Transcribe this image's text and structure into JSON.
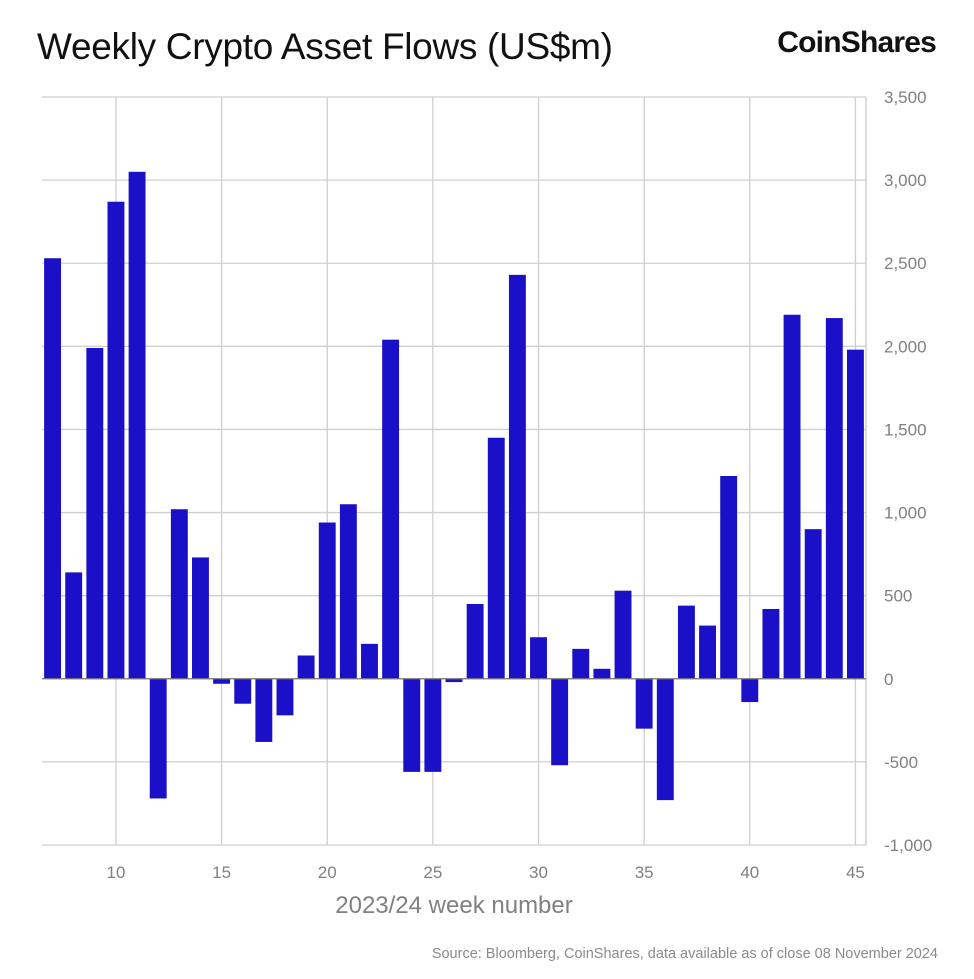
{
  "title": "Weekly Crypto Asset Flows (US$m)",
  "brand": "CoinShares",
  "footer": {
    "source": "Source: Bloomberg, CoinShares, data available as of close 08 November 2024"
  },
  "colors": {
    "bar": "#1a10c8",
    "grid": "#cfcfcf",
    "zero_line": "#7a7a7a",
    "text": "#808080"
  },
  "chart_data": {
    "type": "bar",
    "title": "Weekly Crypto Asset Flows (US$m)",
    "xlabel": "2023/24 week number",
    "ylabel": "",
    "x": [
      7,
      8,
      9,
      10,
      11,
      12,
      13,
      14,
      15,
      16,
      17,
      18,
      19,
      20,
      21,
      22,
      23,
      24,
      25,
      26,
      27,
      28,
      29,
      30,
      31,
      32,
      33,
      34,
      35,
      36,
      37,
      38,
      39,
      40,
      41,
      42,
      43,
      44,
      45
    ],
    "values": [
      2530,
      640,
      1990,
      2870,
      3050,
      -720,
      1020,
      730,
      -30,
      -150,
      -380,
      -220,
      140,
      940,
      1050,
      210,
      2040,
      -560,
      -560,
      -20,
      450,
      1450,
      2430,
      250,
      -520,
      180,
      60,
      530,
      -300,
      -730,
      440,
      320,
      1220,
      -140,
      420,
      2190,
      900,
      2170,
      1980
    ],
    "xticks": [
      10,
      15,
      20,
      25,
      30,
      35,
      40,
      45
    ],
    "yticks": [
      -1000,
      -500,
      0,
      500,
      1000,
      1500,
      2000,
      2500,
      3000,
      3500
    ],
    "ytick_labels": [
      "-1,000",
      "-500",
      "0",
      "500",
      "1,000",
      "1,500",
      "2,000",
      "2,500",
      "3,000",
      "3,500"
    ],
    "ylim": [
      -1000,
      3500
    ],
    "xlim": [
      6.5,
      45.5
    ],
    "y_axis_side": "right",
    "grid": true
  }
}
